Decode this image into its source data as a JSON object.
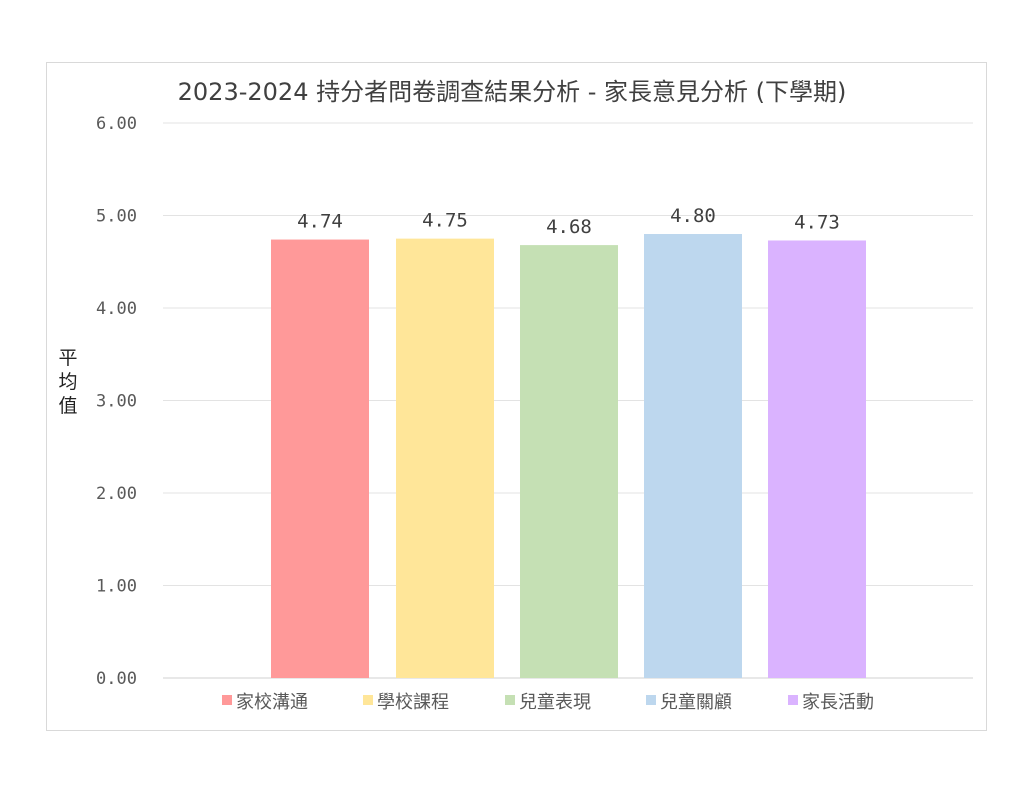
{
  "chart_data": {
    "type": "bar",
    "title": "2023-2024 持分者問卷調查結果分析 - 家長意見分析 (下學期)",
    "ylabel": "平均值",
    "xlabel": "",
    "ylim": [
      0,
      6
    ],
    "yticks": [
      "0.00",
      "1.00",
      "2.00",
      "3.00",
      "4.00",
      "5.00",
      "6.00"
    ],
    "grid": true,
    "legend_position": "bottom",
    "categories": [
      "家校溝通",
      "學校課程",
      "兒童表現",
      "兒童關顧",
      "家長活動"
    ],
    "values": [
      4.74,
      4.75,
      4.68,
      4.8,
      4.73
    ],
    "data_labels": [
      "4.74",
      "4.75",
      "4.68",
      "4.80",
      "4.73"
    ],
    "colors": [
      "#ff9999",
      "#ffe699",
      "#c5e0b4",
      "#bdd7ee",
      "#dab3ff"
    ]
  }
}
